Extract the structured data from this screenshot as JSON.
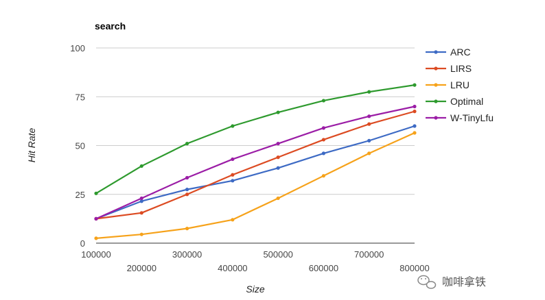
{
  "chart_data": {
    "type": "line",
    "title": "search",
    "xlabel": "Size",
    "ylabel": "Hit Rate",
    "x": [
      100000,
      200000,
      300000,
      400000,
      500000,
      600000,
      700000,
      800000
    ],
    "x_ticks": [
      "100000",
      "200000",
      "300000",
      "400000",
      "500000",
      "600000",
      "700000",
      "800000"
    ],
    "y_ticks": [
      "0",
      "25",
      "50",
      "75",
      "100"
    ],
    "ylim": [
      0,
      100
    ],
    "xlim": [
      100000,
      800000
    ],
    "grid": true,
    "legend_position": "right",
    "series": [
      {
        "name": "ARC",
        "color": "#3d6ac4",
        "values": [
          12.5,
          21.5,
          27.5,
          32,
          38.5,
          46,
          52.5,
          60
        ]
      },
      {
        "name": "LIRS",
        "color": "#dc4b22",
        "values": [
          12.5,
          15.5,
          25,
          35,
          44,
          53,
          61,
          67.5
        ]
      },
      {
        "name": "LRU",
        "color": "#f6a21a",
        "values": [
          2.5,
          4.5,
          7.5,
          12,
          23,
          34.5,
          46,
          56.5
        ]
      },
      {
        "name": "Optimal",
        "color": "#2e9a2e",
        "values": [
          25.5,
          39.5,
          51,
          60,
          67,
          73,
          77.5,
          81
        ]
      },
      {
        "name": "W-TinyLfu",
        "color": "#9b1da6",
        "values": [
          12.5,
          23,
          33.5,
          43,
          51,
          59,
          65,
          70
        ]
      }
    ]
  },
  "watermark": {
    "text": "咖啡拿铁",
    "icon": "wechat-icon"
  }
}
